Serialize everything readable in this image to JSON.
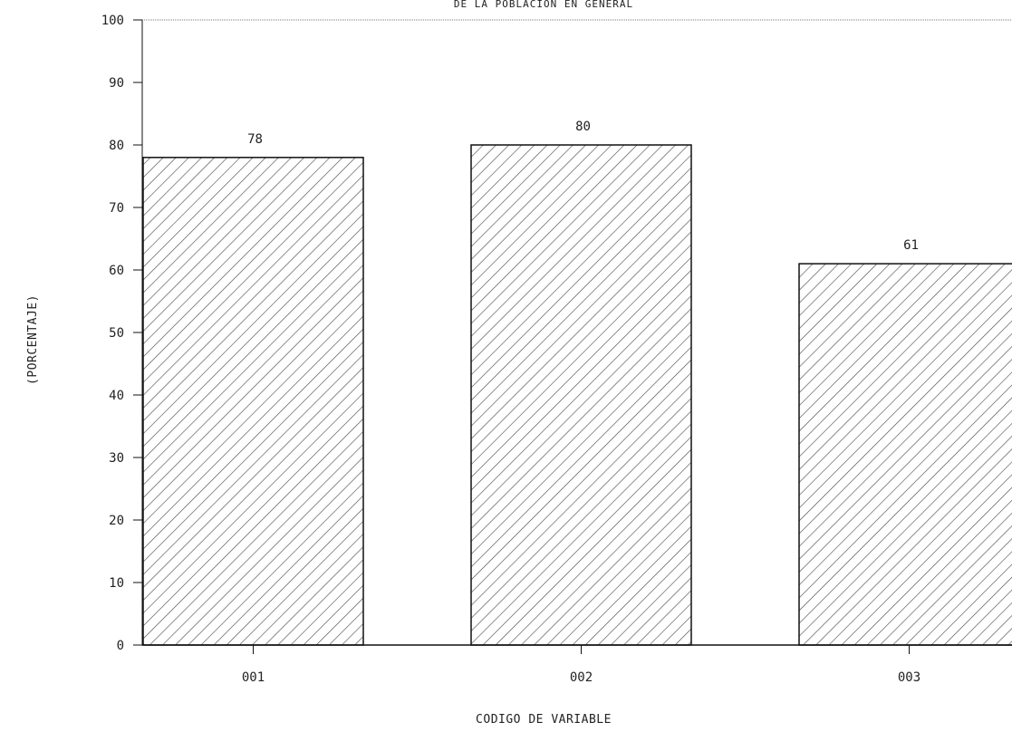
{
  "chart_data": {
    "type": "bar",
    "title": "DE LA POBLACION EN GENERAL",
    "xlabel": "CODIGO DE VARIABLE",
    "ylabel": "(PORCENTAJE)",
    "categories": [
      "001",
      "002",
      "003"
    ],
    "values": [
      78,
      80,
      61
    ],
    "data_labels": [
      "78",
      "80",
      "61"
    ],
    "yticks": [
      0,
      10,
      20,
      30,
      40,
      50,
      60,
      70,
      80,
      90,
      100
    ],
    "ylim": [
      0,
      100
    ],
    "grid": false,
    "legend": "none",
    "bar_fill": "diagonal-hatch",
    "colors": {
      "bar_stroke": "#111111",
      "hatch": "#444444",
      "axis": "#111111",
      "background": "#ffffff"
    }
  }
}
